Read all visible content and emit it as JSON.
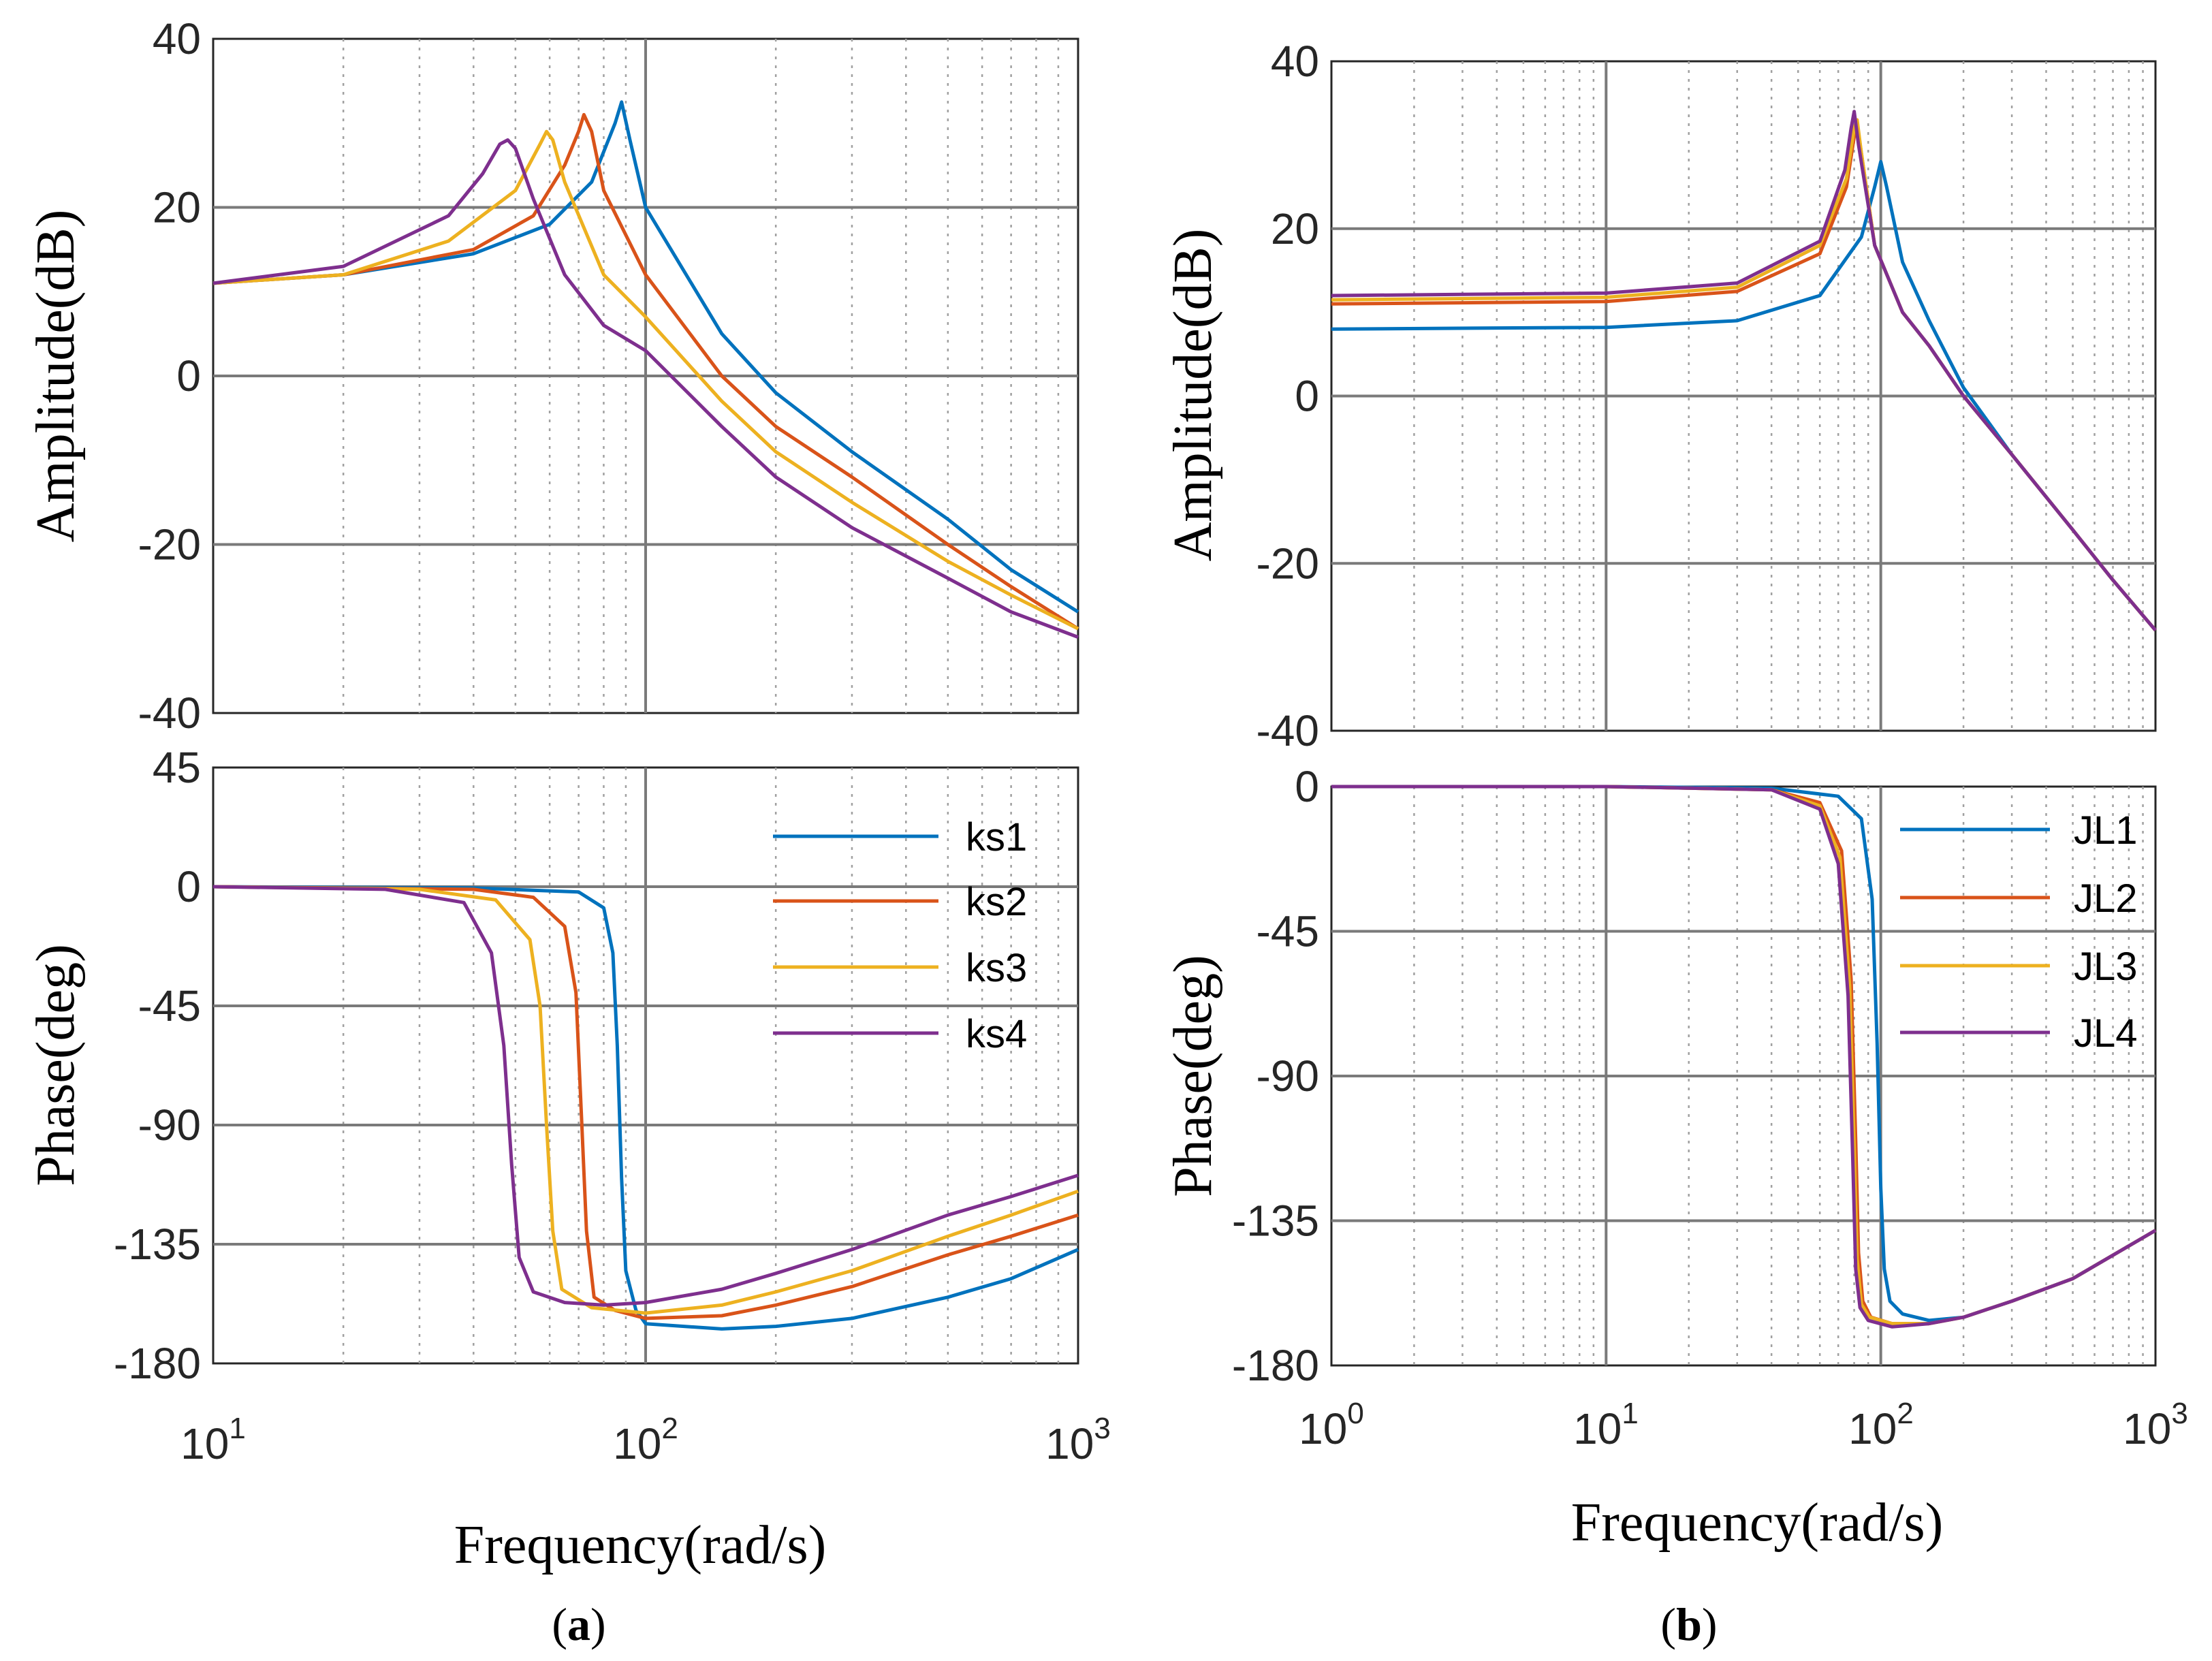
{
  "chart_data": [
    {
      "id": "a",
      "caption_paren_open": "(",
      "caption_letter": "a",
      "caption_paren_close": ")",
      "xlabel": "Frequency(rad/s)",
      "x_log_range": [
        1,
        3
      ],
      "x_tick_base": "10",
      "x_tick_exponents": [
        "1",
        "2",
        "3"
      ],
      "panels": [
        {
          "type": "line",
          "ylabel": "Amplitude(dB)",
          "ylim": [
            -40,
            40
          ],
          "yticks": [
            40,
            20,
            0,
            -20,
            -40
          ],
          "ytick_labels": [
            "40",
            "20",
            "0",
            "-20",
            "-40"
          ],
          "grid": true,
          "series": [
            {
              "name": "ks1",
              "color": "#0072BD",
              "x": [
                10,
                20,
                40,
                60,
                75,
                85,
                88,
                92,
                100,
                150,
                200,
                300,
                500,
                700,
                1000
              ],
              "y": [
                11,
                12,
                14.5,
                18,
                23,
                30,
                32.5,
                28,
                20,
                5,
                -2,
                -9,
                -17,
                -23,
                -28
              ]
            },
            {
              "name": "ks2",
              "color": "#D95319",
              "x": [
                10,
                20,
                40,
                55,
                65,
                70,
                72,
                75,
                80,
                100,
                150,
                200,
                300,
                500,
                700,
                1000
              ],
              "y": [
                11,
                12,
                15,
                19,
                25,
                29,
                31,
                29,
                22,
                12,
                0,
                -6,
                -12,
                -20,
                -25,
                -30
              ]
            },
            {
              "name": "ks3",
              "color": "#EDB120",
              "x": [
                10,
                20,
                35,
                50,
                57,
                59,
                61,
                65,
                80,
                100,
                150,
                200,
                300,
                500,
                700,
                1000
              ],
              "y": [
                11,
                12,
                16,
                22,
                27.5,
                29,
                28,
                23,
                12,
                7,
                -3,
                -9,
                -15,
                -22,
                -26,
                -30
              ]
            },
            {
              "name": "ks4",
              "color": "#7E2F8E",
              "x": [
                10,
                20,
                35,
                42,
                46,
                48,
                50,
                55,
                65,
                80,
                100,
                150,
                200,
                300,
                500,
                700,
                1000
              ],
              "y": [
                11,
                13,
                19,
                24,
                27.5,
                28,
                27,
                21,
                12,
                6,
                3,
                -6,
                -12,
                -18,
                -24,
                -28,
                -31
              ]
            }
          ]
        },
        {
          "type": "line",
          "ylabel": "Phase(deg)",
          "ylim": [
            -180,
            45
          ],
          "yticks": [
            45,
            0,
            -45,
            -90,
            -135,
            -180
          ],
          "ytick_labels": [
            "45",
            "0",
            "-45",
            "-90",
            "-135",
            "-180"
          ],
          "grid": true,
          "legend": "top-right",
          "series": [
            {
              "name": "ks1",
              "color": "#0072BD",
              "x": [
                10,
                40,
                70,
                80,
                84,
                86,
                88,
                90,
                95,
                100,
                150,
                200,
                300,
                500,
                700,
                1000
              ],
              "y": [
                0,
                -0.5,
                -2,
                -8,
                -25,
                -60,
                -110,
                -145,
                -160,
                -165,
                -167,
                -166,
                -163,
                -155,
                -148,
                -137
              ]
            },
            {
              "name": "ks2",
              "color": "#D95319",
              "x": [
                10,
                40,
                55,
                65,
                69,
                71,
                73,
                76,
                85,
                100,
                150,
                200,
                300,
                500,
                700,
                1000
              ],
              "y": [
                0,
                -1,
                -4,
                -15,
                -40,
                -85,
                -130,
                -155,
                -160,
                -163,
                -162,
                -158,
                -151,
                -139,
                -132,
                -124
              ]
            },
            {
              "name": "ks3",
              "color": "#EDB120",
              "x": [
                10,
                30,
                45,
                54,
                57,
                59,
                61,
                64,
                75,
                100,
                150,
                200,
                300,
                500,
                700,
                1000
              ],
              "y": [
                0,
                -1,
                -5,
                -20,
                -45,
                -90,
                -130,
                -152,
                -159,
                -161,
                -158,
                -153,
                -145,
                -132,
                -124,
                -115
              ]
            },
            {
              "name": "ks4",
              "color": "#7E2F8E",
              "x": [
                10,
                25,
                38,
                44,
                47,
                49,
                51,
                55,
                65,
                80,
                100,
                150,
                200,
                300,
                500,
                700,
                1000
              ],
              "y": [
                0,
                -1,
                -6,
                -25,
                -60,
                -105,
                -140,
                -153,
                -157,
                -158,
                -157,
                -152,
                -146,
                -137,
                -124,
                -117,
                -109
              ]
            }
          ]
        }
      ]
    },
    {
      "id": "b",
      "caption_paren_open": "(",
      "caption_letter": "b",
      "caption_paren_close": ")",
      "xlabel": "Frequency(rad/s)",
      "x_log_range": [
        0,
        3
      ],
      "x_tick_base": "10",
      "x_tick_exponents": [
        "0",
        "1",
        "2",
        "3"
      ],
      "panels": [
        {
          "type": "line",
          "ylabel": "Amplitude(dB)",
          "ylim": [
            -40,
            40
          ],
          "yticks": [
            40,
            20,
            0,
            -20,
            -40
          ],
          "ytick_labels": [
            "40",
            "20",
            "0",
            "-20",
            "-40"
          ],
          "grid": true,
          "series": [
            {
              "name": "JL1",
              "color": "#0072BD",
              "x": [
                1,
                10,
                30,
                60,
                85,
                95,
                100,
                105,
                120,
                150,
                200,
                300,
                500,
                700,
                1000
              ],
              "y": [
                8,
                8.2,
                9,
                12,
                19,
                25,
                28,
                25,
                16,
                9,
                1,
                -7,
                -16,
                -22,
                -28
              ]
            },
            {
              "name": "JL2",
              "color": "#D95319",
              "x": [
                1,
                10,
                30,
                60,
                75,
                80,
                82,
                85,
                95,
                120,
                150,
                200,
                300,
                500,
                700,
                1000
              ],
              "y": [
                11,
                11.3,
                12.5,
                17,
                25,
                31,
                32.5,
                29,
                18,
                10,
                6,
                0,
                -7,
                -16,
                -22,
                -28
              ]
            },
            {
              "name": "JL3",
              "color": "#EDB120",
              "x": [
                1,
                10,
                30,
                60,
                75,
                80,
                82,
                85,
                95,
                120,
                150,
                200,
                300,
                500,
                700,
                1000
              ],
              "y": [
                11.5,
                11.8,
                13,
                18,
                26,
                32,
                33,
                29,
                18,
                10,
                6,
                0,
                -7,
                -16,
                -22,
                -28
              ]
            },
            {
              "name": "JL4",
              "color": "#7E2F8E",
              "x": [
                1,
                10,
                30,
                60,
                74,
                78,
                80,
                83,
                95,
                120,
                150,
                200,
                300,
                500,
                700,
                1000
              ],
              "y": [
                12,
                12.3,
                13.5,
                18.5,
                27,
                32,
                34,
                30,
                18,
                10,
                6,
                0,
                -7,
                -16,
                -22,
                -28
              ]
            }
          ]
        },
        {
          "type": "line",
          "ylabel": "Phase(deg)",
          "ylim": [
            -180,
            0
          ],
          "yticks": [
            0,
            -45,
            -90,
            -135,
            -180
          ],
          "ytick_labels": [
            "0",
            "-45",
            "-90",
            "-135",
            "-180"
          ],
          "grid": true,
          "legend": "top-right",
          "series": [
            {
              "name": "JL1",
              "color": "#0072BD",
              "x": [
                1,
                10,
                40,
                70,
                85,
                93,
                97,
                100,
                103,
                108,
                120,
                150,
                200,
                300,
                500,
                1000
              ],
              "y": [
                0,
                0,
                -0.5,
                -3,
                -10,
                -35,
                -80,
                -125,
                -150,
                -160,
                -164,
                -166,
                -165,
                -160,
                -153,
                -138
              ]
            },
            {
              "name": "JL2",
              "color": "#D95319",
              "x": [
                1,
                10,
                40,
                60,
                72,
                78,
                81,
                83,
                86,
                92,
                110,
                150,
                200,
                300,
                500,
                1000
              ],
              "y": [
                0,
                0,
                -1,
                -5,
                -20,
                -60,
                -110,
                -145,
                -160,
                -165,
                -167,
                -167,
                -165,
                -160,
                -153,
                -138
              ]
            },
            {
              "name": "JL3",
              "color": "#EDB120",
              "x": [
                1,
                10,
                40,
                60,
                71,
                77,
                80,
                82,
                85,
                91,
                110,
                150,
                200,
                300,
                500,
                1000
              ],
              "y": [
                0,
                0,
                -1,
                -6,
                -22,
                -62,
                -112,
                -147,
                -161,
                -165,
                -167,
                -167,
                -165,
                -160,
                -153,
                -138
              ]
            },
            {
              "name": "JL4",
              "color": "#7E2F8E",
              "x": [
                1,
                10,
                40,
                60,
                70,
                76,
                79,
                81,
                84,
                90,
                110,
                150,
                200,
                300,
                500,
                1000
              ],
              "y": [
                0,
                0,
                -1,
                -7,
                -24,
                -65,
                -115,
                -150,
                -162,
                -166,
                -168,
                -167,
                -165,
                -160,
                -153,
                -138
              ]
            }
          ]
        }
      ]
    }
  ]
}
